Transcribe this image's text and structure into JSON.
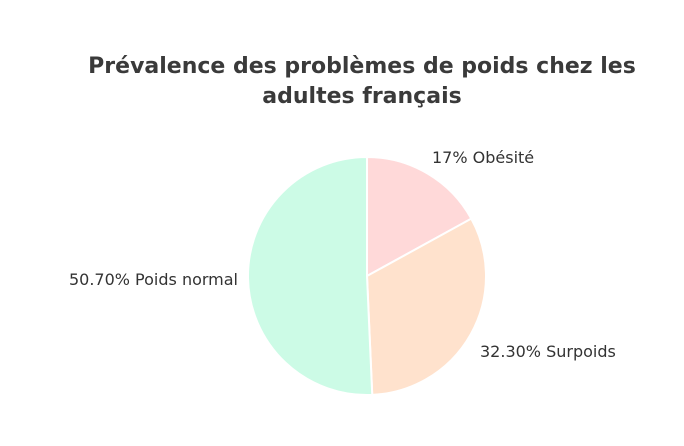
{
  "chart_data": {
    "type": "pie",
    "title": "Prévalence des problèmes de poids chez les adultes français",
    "slices": [
      {
        "label": "17% Obésité",
        "value": 17.0,
        "color": "#ffd9d9"
      },
      {
        "label": "32.30% Surpoids",
        "value": 32.3,
        "color": "#ffe2cd"
      },
      {
        "label": "50.70% Poids normal",
        "value": 50.7,
        "color": "#ccfbe6"
      }
    ],
    "start_angle_deg": 0,
    "direction": "clockwise",
    "legend": "none"
  }
}
